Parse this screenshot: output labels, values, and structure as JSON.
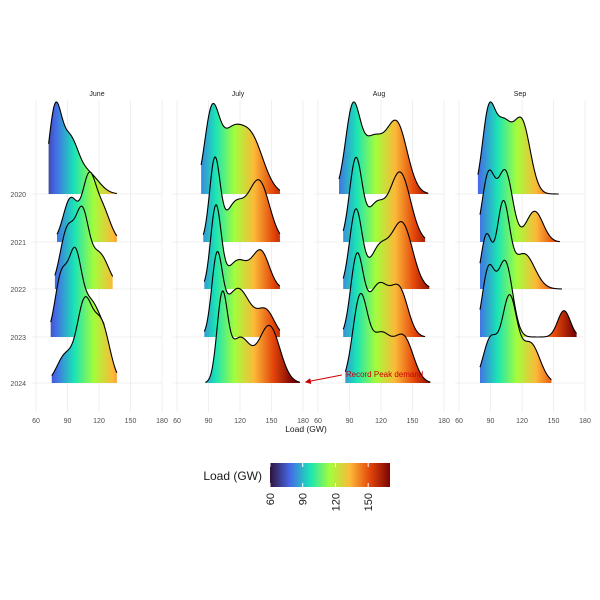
{
  "chart_data": {
    "type": "ridgeline",
    "xlabel": "Load (GW)",
    "x_ticks": [
      60,
      90,
      120,
      150,
      180
    ],
    "xlim": [
      60,
      180
    ],
    "years": [
      "2020",
      "2021",
      "2022",
      "2023",
      "2024"
    ],
    "facets": [
      {
        "title": "June",
        "ridges": {
          "2020": {
            "range": [
              72,
              137
            ],
            "peaks": [
              [
                78,
                1.0,
                6
              ],
              [
                92,
                0.65,
                8
              ],
              [
                110,
                0.25,
                10
              ]
            ]
          },
          "2021": {
            "range": [
              80,
              137
            ],
            "peaks": [
              [
                93,
                0.55,
                7
              ],
              [
                110,
                0.7,
                6
              ],
              [
                122,
                0.45,
                8
              ]
            ]
          },
          "2022": {
            "range": [
              78,
              133
            ],
            "peaks": [
              [
                90,
                0.75,
                7
              ],
              [
                104,
                0.85,
                6
              ],
              [
                120,
                0.45,
                9
              ]
            ]
          },
          "2023": {
            "range": [
              74,
              125
            ],
            "peaks": [
              [
                84,
                0.75,
                6
              ],
              [
                97,
                0.95,
                6
              ],
              [
                112,
                0.45,
                9
              ]
            ]
          },
          "2024": {
            "range": [
              75,
              137
            ],
            "peaks": [
              [
                88,
                0.35,
                8
              ],
              [
                106,
                0.95,
                7
              ],
              [
                122,
                0.75,
                8
              ]
            ]
          }
        }
      },
      {
        "title": "July",
        "ridges": {
          "2020": {
            "range": [
              83,
              158
            ],
            "peaks": [
              [
                93,
                0.95,
                7
              ],
              [
                110,
                0.6,
                10
              ],
              [
                130,
                0.7,
                12
              ]
            ]
          },
          "2021": {
            "range": [
              85,
              158
            ],
            "peaks": [
              [
                96,
                1.0,
                5
              ],
              [
                115,
                0.45,
                9
              ],
              [
                138,
                0.75,
                10
              ]
            ]
          },
          "2022": {
            "range": [
              86,
              158
            ],
            "peaks": [
              [
                97,
                1.0,
                5
              ],
              [
                118,
                0.35,
                10
              ],
              [
                140,
                0.45,
                8
              ]
            ]
          },
          "2023": {
            "range": [
              86,
              158
            ],
            "peaks": [
              [
                98,
                0.9,
                5
              ],
              [
                118,
                0.6,
                12
              ],
              [
                145,
                0.3,
                8
              ]
            ]
          },
          "2024": {
            "range": [
              87,
              177
            ],
            "peaks": [
              [
                103,
                1.0,
                5
              ],
              [
                120,
                0.55,
                10
              ],
              [
                148,
                0.7,
                10
              ]
            ]
          }
        }
      },
      {
        "title": "Aug",
        "ridges": {
          "2020": {
            "range": [
              80,
              165
            ],
            "peaks": [
              [
                93,
                0.95,
                7
              ],
              [
                112,
                0.6,
                10
              ],
              [
                135,
                0.8,
                10
              ]
            ]
          },
          "2021": {
            "range": [
              84,
              162
            ],
            "peaks": [
              [
                96,
                0.95,
                6
              ],
              [
                115,
                0.4,
                8
              ],
              [
                138,
                0.8,
                10
              ]
            ]
          },
          "2022": {
            "range": [
              84,
              166
            ],
            "peaks": [
              [
                96,
                0.9,
                6
              ],
              [
                118,
                0.45,
                9
              ],
              [
                140,
                0.75,
                10
              ]
            ]
          },
          "2023": {
            "range": [
              84,
              162
            ],
            "peaks": [
              [
                97,
                0.9,
                6
              ],
              [
                118,
                0.6,
                10
              ],
              [
                138,
                0.5,
                8
              ]
            ]
          },
          "2024": {
            "range": [
              86,
              167
            ],
            "peaks": [
              [
                100,
                0.95,
                7
              ],
              [
                120,
                0.55,
                10
              ],
              [
                142,
                0.5,
                9
              ]
            ]
          }
        }
      },
      {
        "title": "Sep",
        "ridges": {
          "2020": {
            "range": [
              78,
              155
            ],
            "peaks": [
              [
                88,
                0.85,
                6
              ],
              [
                102,
                0.75,
                8
              ],
              [
                120,
                0.8,
                8
              ]
            ]
          },
          "2021": {
            "range": [
              80,
              156
            ],
            "peaks": [
              [
                88,
                0.75,
                6
              ],
              [
                104,
                0.8,
                7
              ],
              [
                132,
                0.35,
                8
              ]
            ]
          },
          "2022": {
            "range": [
              80,
              158
            ],
            "peaks": [
              [
                86,
                0.6,
                5
              ],
              [
                102,
                0.95,
                6
              ],
              [
                122,
                0.4,
                10
              ]
            ]
          },
          "2023": {
            "range": [
              80,
              172
            ],
            "peaks": [
              [
                88,
                0.75,
                6
              ],
              [
                104,
                0.85,
                7
              ],
              [
                160,
                0.3,
                6
              ]
            ]
          },
          "2024": {
            "range": [
              80,
              148
            ],
            "peaks": [
              [
                90,
                0.5,
                7
              ],
              [
                108,
                0.95,
                7
              ],
              [
                128,
                0.45,
                9
              ]
            ]
          }
        }
      }
    ],
    "annotation": {
      "text": "Record Peak demand",
      "facet": "July",
      "year": "2024",
      "x": 177,
      "color": "#cc0000"
    },
    "colorbar": {
      "title": "Load (GW)",
      "ticks": [
        60,
        90,
        120,
        150
      ],
      "range": [
        60,
        170
      ],
      "colors": [
        "#30123b",
        "#4669e8",
        "#1ae4b6",
        "#a3fd3c",
        "#fbb938",
        "#e4460a",
        "#7a0403"
      ]
    },
    "grid": true,
    "legend_position": "bottom"
  }
}
